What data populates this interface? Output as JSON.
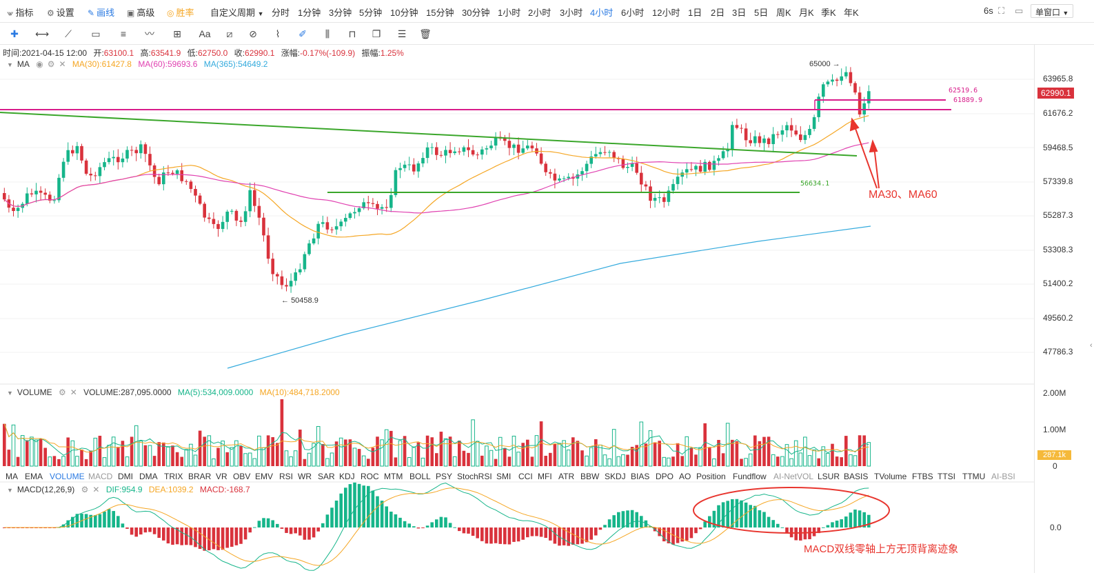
{
  "topbar": {
    "indicator": "指标",
    "settings": "设置",
    "draw": "画线",
    "advanced": "高级",
    "winrate": "胜率",
    "custom_period": "自定义周期",
    "periods": [
      "分时",
      "1分钟",
      "3分钟",
      "5分钟",
      "10分钟",
      "15分钟",
      "30分钟",
      "1小时",
      "2小时",
      "3小时",
      "4小时",
      "6小时",
      "12小时",
      "1日",
      "2日",
      "3日",
      "5日",
      "周K",
      "月K",
      "季K",
      "年K"
    ],
    "active_period": "4小时",
    "refresh": "6s",
    "window_mode": "单窗口"
  },
  "ohlc": {
    "time_label": "时间:",
    "time": "2021-04-15 12:00",
    "open_label": "开:",
    "open": "63100.1",
    "high_label": "高:",
    "high": "63541.9",
    "low_label": "低:",
    "low": "62750.0",
    "close_label": "收:",
    "close": "62990.1",
    "change_label": "涨幅:",
    "change": "-0.17%(-109.9)",
    "amp_label": "振幅:",
    "amp": "1.25%"
  },
  "ma_legend": {
    "name": "MA",
    "ma30": "MA(30):61427.8",
    "ma60": "MA(60):59693.6",
    "ma365": "MA(365):54649.2"
  },
  "volume_legend": {
    "name": "VOLUME",
    "value": "VOLUME:287,095.0000",
    "ma5": "MA(5):534,009.0000",
    "ma10": "MA(10):484,718.2000"
  },
  "macd_legend": {
    "name": "MACD(12,26,9)",
    "dif": "DIF:954.9",
    "dea": "DEA:1039.2",
    "macd": "MACD:-168.7"
  },
  "price_axis": {
    "ticks": [
      "63965.8",
      "61676.2",
      "59468.5",
      "57339.8",
      "55287.3",
      "53308.3",
      "51400.2",
      "49560.2",
      "47786.3"
    ],
    "current": "62990.1"
  },
  "volume_axis": {
    "ticks": [
      "2.00M",
      "1.00M",
      "0"
    ],
    "current": "287.1k"
  },
  "macd_axis": {
    "ticks": [
      "0.0"
    ]
  },
  "annotations": {
    "high": "65000",
    "low": "50458.9",
    "level1": "62519.6",
    "level2": "61889.9",
    "support": "56634.1",
    "ma_note": "MA30、MA60",
    "macd_note": "MACD双线零轴上方无顶背离迹象"
  },
  "indicator_tabs": [
    "MA",
    "EMA",
    "VOLUME",
    "MACD",
    "DMI",
    "DMA",
    "TRIX",
    "BRAR",
    "VR",
    "OBV",
    "EMV",
    "RSI",
    "WR",
    "SAR",
    "KDJ",
    "ROC",
    "MTM",
    "BOLL",
    "PSY",
    "StochRSI",
    "SMI",
    "CCI",
    "MFI",
    "ATR",
    "BBW",
    "SKDJ",
    "BIAS",
    "DPO",
    "AO",
    "Position",
    "Fundflow",
    "AI-NetVOL",
    "LSUR",
    "BASIS",
    "TVolume",
    "FTBS",
    "TTSI",
    "TTMU",
    "AI-BSI"
  ],
  "indicator_tabs_active": "VOLUME",
  "colors": {
    "up": "#16b58a",
    "down": "#d9323c",
    "accent": "#2a7ae2",
    "ma30": "#f5a623",
    "ma60": "#e040b0",
    "ma365": "#33aadd",
    "trendline_green": "#3aa62a",
    "level_magenta": "#d81b8a",
    "annotation_red": "#e8352e"
  },
  "chart_data": {
    "type": "candlestick",
    "symbol_interval": "4小时",
    "price_ylim": [
      47786.3,
      65000
    ],
    "series_notes": [
      "MA(30)",
      "MA(60)",
      "MA(365)"
    ],
    "last_candle": {
      "time": "2021-04-15 12:00",
      "open": 63100.1,
      "high": 63541.9,
      "low": 62750.0,
      "close": 62990.1
    },
    "marked_high": 65000,
    "marked_low": 50458.9,
    "horizontal_levels": [
      62519.6,
      61889.9,
      56634.1
    ]
  }
}
